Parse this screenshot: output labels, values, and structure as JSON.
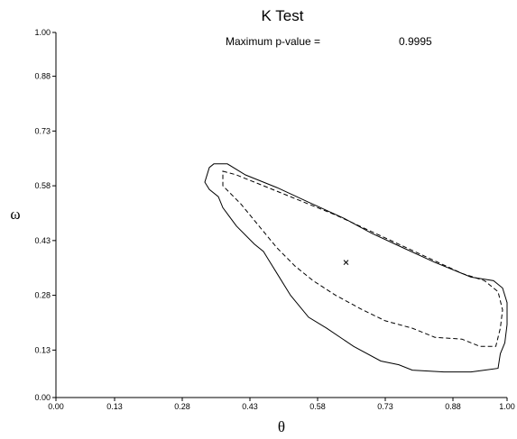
{
  "chart_data": {
    "type": "line",
    "title": "K Test",
    "annotation": {
      "label": "Maximum p-value =",
      "value": "0.9995"
    },
    "xlabel": "θ",
    "ylabel": "ω",
    "xlim": [
      0.0,
      1.0
    ],
    "ylim": [
      0.0,
      1.0
    ],
    "x_ticks": [
      "0.00",
      "0.13",
      "0.28",
      "0.43",
      "0.58",
      "0.73",
      "0.88",
      "1.00"
    ],
    "y_ticks": [
      "0.00",
      "0.13",
      "0.28",
      "0.43",
      "0.58",
      "0.73",
      "0.88",
      "1.00"
    ],
    "grid": false,
    "series": [
      {
        "style": "solid",
        "closed": true,
        "points": [
          [
            0.35,
            0.64
          ],
          [
            0.38,
            0.64
          ],
          [
            0.42,
            0.61
          ],
          [
            0.49,
            0.575
          ],
          [
            0.56,
            0.535
          ],
          [
            0.64,
            0.49
          ],
          [
            0.7,
            0.45
          ],
          [
            0.77,
            0.41
          ],
          [
            0.84,
            0.37
          ],
          [
            0.92,
            0.33
          ],
          [
            0.97,
            0.32
          ],
          [
            0.99,
            0.3
          ],
          [
            1.0,
            0.26
          ],
          [
            1.0,
            0.2
          ],
          [
            0.995,
            0.15
          ],
          [
            0.985,
            0.12
          ],
          [
            0.98,
            0.08
          ],
          [
            0.95,
            0.075
          ],
          [
            0.92,
            0.07
          ],
          [
            0.86,
            0.07
          ],
          [
            0.79,
            0.075
          ],
          [
            0.76,
            0.09
          ],
          [
            0.72,
            0.1
          ],
          [
            0.66,
            0.14
          ],
          [
            0.6,
            0.19
          ],
          [
            0.56,
            0.22
          ],
          [
            0.52,
            0.28
          ],
          [
            0.49,
            0.34
          ],
          [
            0.47,
            0.38
          ],
          [
            0.46,
            0.4
          ],
          [
            0.44,
            0.42
          ],
          [
            0.4,
            0.47
          ],
          [
            0.37,
            0.52
          ],
          [
            0.36,
            0.55
          ],
          [
            0.34,
            0.57
          ],
          [
            0.33,
            0.59
          ],
          [
            0.34,
            0.63
          ],
          [
            0.35,
            0.64
          ]
        ]
      },
      {
        "style": "dashed",
        "closed": true,
        "points": [
          [
            0.37,
            0.62
          ],
          [
            0.4,
            0.61
          ],
          [
            0.46,
            0.58
          ],
          [
            0.54,
            0.54
          ],
          [
            0.62,
            0.5
          ],
          [
            0.69,
            0.46
          ],
          [
            0.76,
            0.42
          ],
          [
            0.83,
            0.38
          ],
          [
            0.9,
            0.34
          ],
          [
            0.95,
            0.32
          ],
          [
            0.98,
            0.29
          ],
          [
            0.99,
            0.24
          ],
          [
            0.985,
            0.19
          ],
          [
            0.975,
            0.14
          ],
          [
            0.94,
            0.14
          ],
          [
            0.9,
            0.16
          ],
          [
            0.84,
            0.165
          ],
          [
            0.79,
            0.19
          ],
          [
            0.73,
            0.21
          ],
          [
            0.68,
            0.24
          ],
          [
            0.62,
            0.28
          ],
          [
            0.57,
            0.32
          ],
          [
            0.53,
            0.36
          ],
          [
            0.49,
            0.41
          ],
          [
            0.45,
            0.47
          ],
          [
            0.41,
            0.53
          ],
          [
            0.37,
            0.58
          ],
          [
            0.37,
            0.62
          ]
        ]
      }
    ],
    "marker": {
      "x": 0.643,
      "y": 0.37,
      "symbol": "x"
    }
  }
}
